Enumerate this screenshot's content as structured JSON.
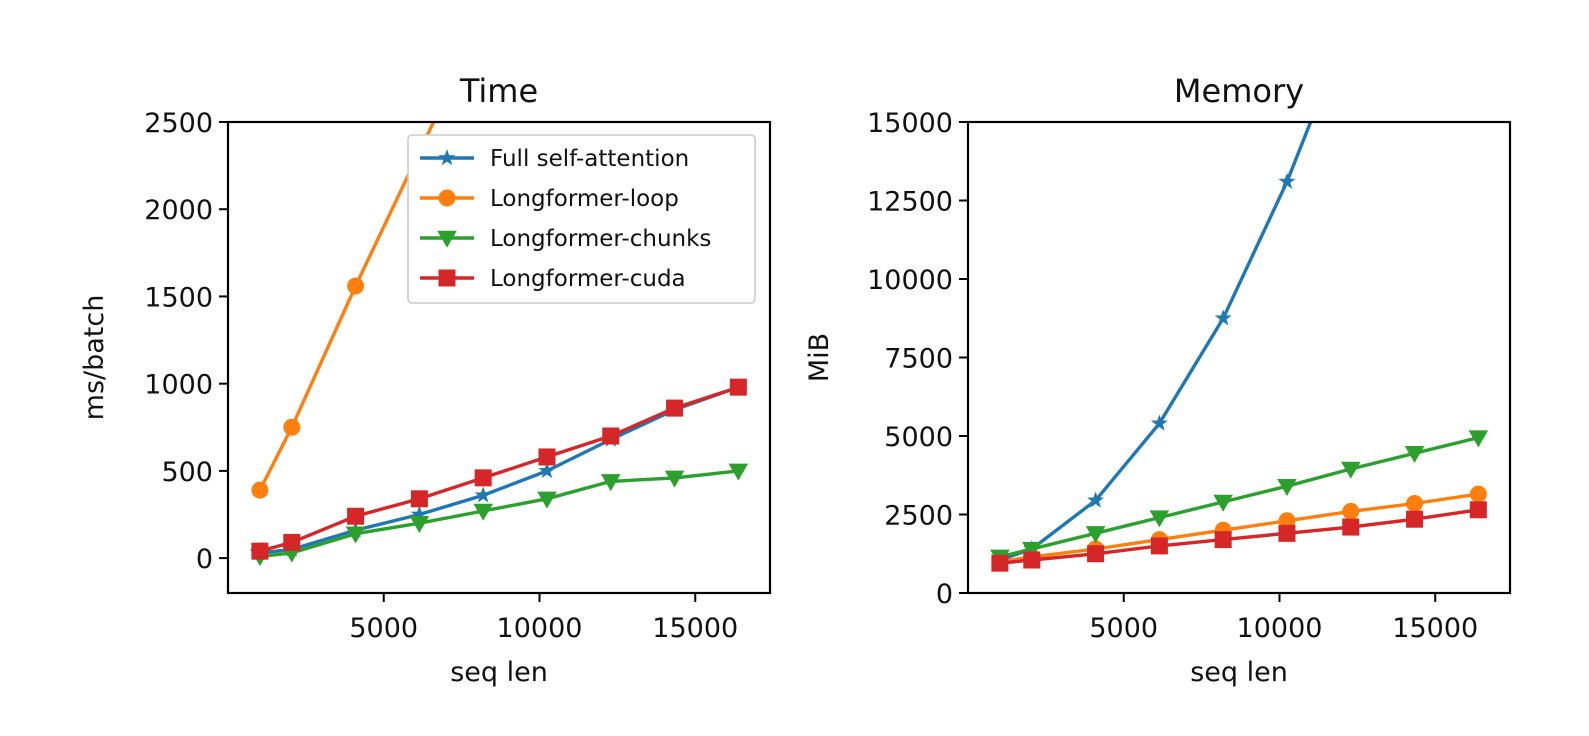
{
  "chart_data": [
    {
      "type": "line",
      "title": "Time",
      "xlabel": "seq len",
      "ylabel": "ms/batch",
      "xlim": [
        0,
        17400
      ],
      "ylim": [
        -200,
        2500
      ],
      "xticks": [
        5000,
        10000,
        15000
      ],
      "xtick_labels": [
        "5000",
        "10000",
        "15000"
      ],
      "yticks": [
        0,
        500,
        1000,
        1500,
        2000,
        2500
      ],
      "ytick_labels": [
        "0",
        "500",
        "1000",
        "1500",
        "2000",
        "2500"
      ],
      "grid": false,
      "legend_position": "upper right",
      "x": [
        1024,
        2048,
        4096,
        6144,
        8192,
        10240,
        12288,
        14336,
        16384
      ],
      "series": [
        {
          "name": "Full self-attention",
          "color": "#1f77b4",
          "marker": "star",
          "points": [
            [
              1024,
              30
            ],
            [
              2048,
              50
            ],
            [
              4096,
              160
            ],
            [
              6144,
              250
            ],
            [
              8192,
              360
            ],
            [
              10240,
              500
            ],
            [
              12288,
              680
            ],
            [
              14336,
              850
            ],
            [
              16384,
              980
            ]
          ]
        },
        {
          "name": "Longformer-loop",
          "color": "#ff7f0e",
          "marker": "circle",
          "points": [
            [
              1024,
              390
            ],
            [
              2048,
              750
            ],
            [
              4096,
              1560
            ],
            [
              6144,
              2330
            ],
            [
              6600,
              2500
            ]
          ]
        },
        {
          "name": "Longformer-chunks",
          "color": "#2ca02c",
          "marker": "triangle-down",
          "points": [
            [
              1024,
              10
            ],
            [
              2048,
              30
            ],
            [
              4096,
              140
            ],
            [
              6144,
              200
            ],
            [
              8192,
              270
            ],
            [
              10240,
              340
            ],
            [
              12288,
              440
            ],
            [
              14336,
              460
            ],
            [
              16384,
              500
            ]
          ]
        },
        {
          "name": "Longformer-cuda",
          "color": "#d62728",
          "marker": "square",
          "points": [
            [
              1024,
              40
            ],
            [
              2048,
              90
            ],
            [
              4096,
              240
            ],
            [
              6144,
              340
            ],
            [
              8192,
              460
            ],
            [
              10240,
              580
            ],
            [
              12288,
              700
            ],
            [
              14336,
              860
            ],
            [
              16384,
              980
            ]
          ]
        }
      ]
    },
    {
      "type": "line",
      "title": "Memory",
      "xlabel": "seq len",
      "ylabel": "MiB",
      "xlim": [
        0,
        17400
      ],
      "ylim": [
        0,
        15000
      ],
      "xticks": [
        5000,
        10000,
        15000
      ],
      "xtick_labels": [
        "5000",
        "10000",
        "15000"
      ],
      "yticks": [
        0,
        2500,
        5000,
        7500,
        10000,
        12500,
        15000
      ],
      "ytick_labels": [
        "0",
        "2500",
        "5000",
        "7500",
        "10000",
        "12500",
        "15000"
      ],
      "grid": false,
      "x": [
        1024,
        2048,
        4096,
        6144,
        8192,
        10240,
        12288,
        14336,
        16384
      ],
      "series": [
        {
          "name": "Full self-attention",
          "color": "#1f77b4",
          "marker": "star",
          "points": [
            [
              1024,
              1050
            ],
            [
              2048,
              1400
            ],
            [
              4096,
              2950
            ],
            [
              6144,
              5400
            ],
            [
              8192,
              8750
            ],
            [
              10240,
              13100
            ],
            [
              11000,
              15000
            ]
          ]
        },
        {
          "name": "Longformer-loop",
          "color": "#ff7f0e",
          "marker": "circle",
          "points": [
            [
              1024,
              1000
            ],
            [
              2048,
              1150
            ],
            [
              4096,
              1400
            ],
            [
              6144,
              1700
            ],
            [
              8192,
              2000
            ],
            [
              10240,
              2300
            ],
            [
              12288,
              2600
            ],
            [
              14336,
              2850
            ],
            [
              16384,
              3150
            ]
          ]
        },
        {
          "name": "Longformer-chunks",
          "color": "#2ca02c",
          "marker": "triangle-down",
          "points": [
            [
              1024,
              1150
            ],
            [
              2048,
              1400
            ],
            [
              4096,
              1900
            ],
            [
              6144,
              2400
            ],
            [
              8192,
              2900
            ],
            [
              10240,
              3400
            ],
            [
              12288,
              3950
            ],
            [
              14336,
              4450
            ],
            [
              16384,
              4950
            ]
          ]
        },
        {
          "name": "Longformer-cuda",
          "color": "#d62728",
          "marker": "square",
          "points": [
            [
              1024,
              950
            ],
            [
              2048,
              1050
            ],
            [
              4096,
              1250
            ],
            [
              6144,
              1500
            ],
            [
              8192,
              1700
            ],
            [
              10240,
              1900
            ],
            [
              12288,
              2100
            ],
            [
              14336,
              2350
            ],
            [
              16384,
              2650
            ]
          ]
        }
      ]
    }
  ]
}
